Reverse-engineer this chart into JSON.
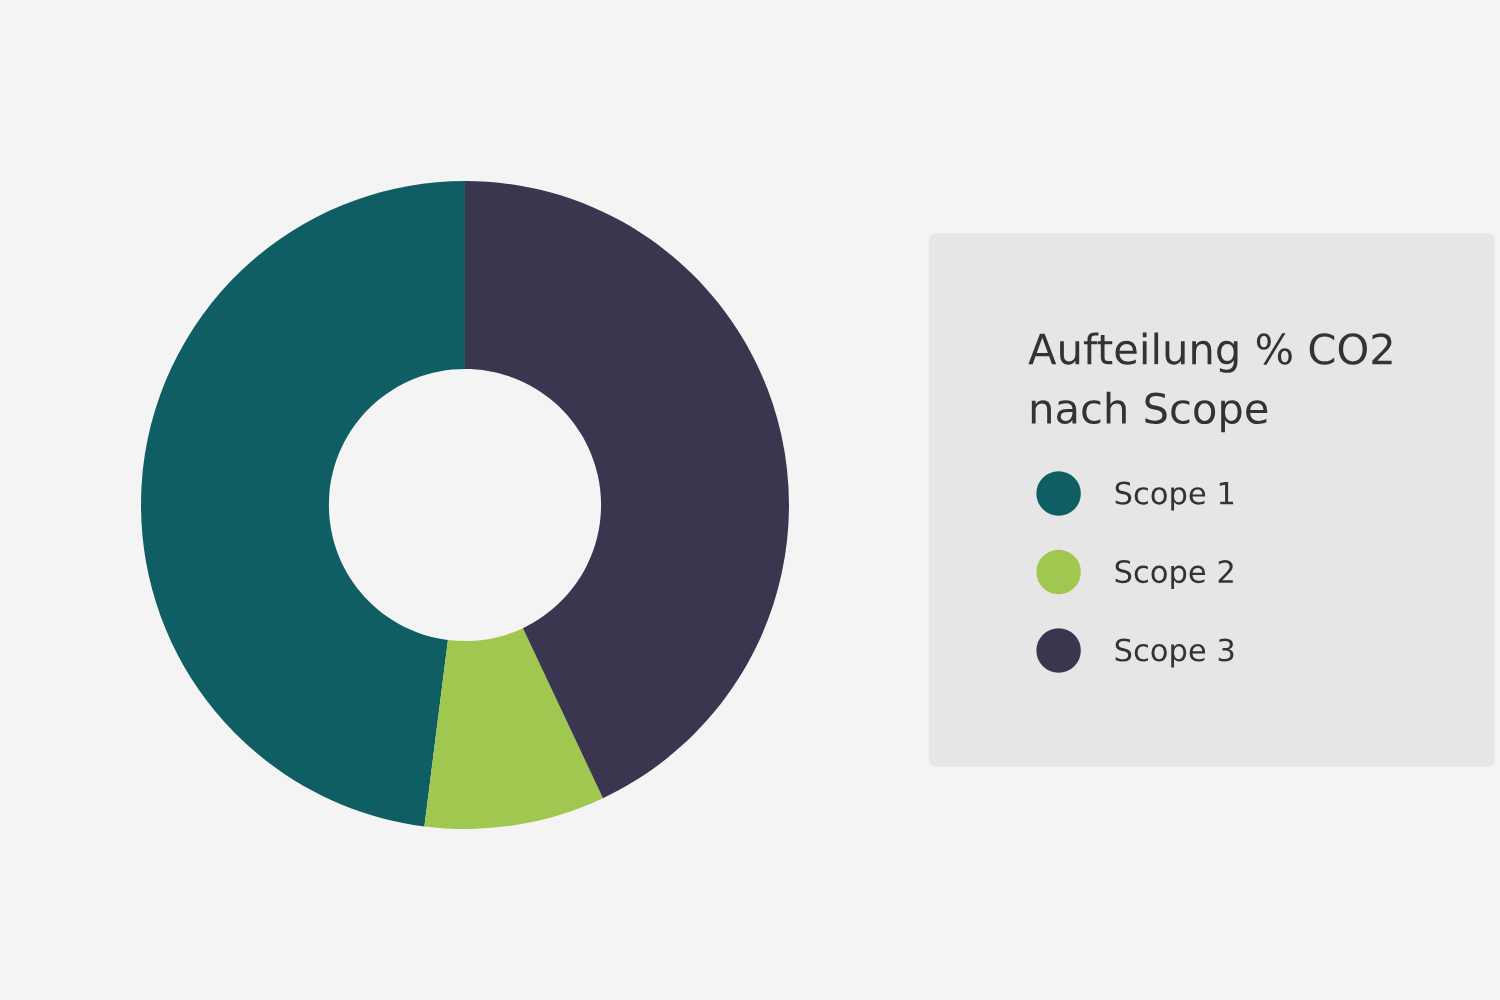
{
  "chart_data": {
    "type": "donut",
    "legend_title": "Aufteilung % CO2\nnach Scope",
    "categories": [
      "Scope 1",
      "Scope 2",
      "Scope 3"
    ],
    "values": [
      48,
      9,
      43
    ],
    "colors": [
      "#0f5e63",
      "#a0c850",
      "#3b3650"
    ],
    "legend": "right"
  }
}
